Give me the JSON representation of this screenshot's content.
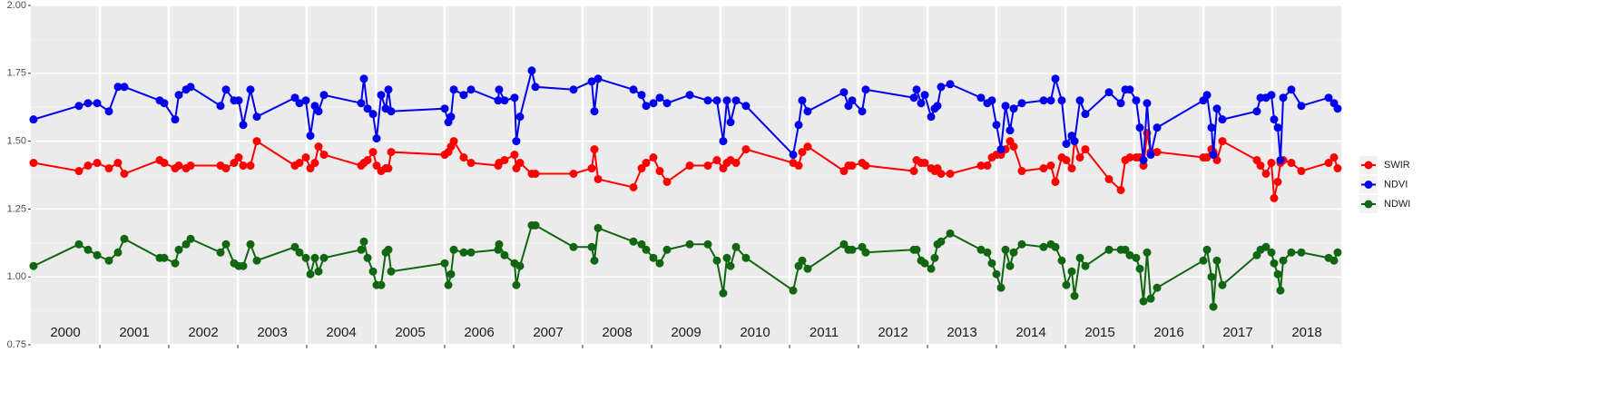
{
  "chart_data": {
    "type": "line",
    "x": [
      2000.039,
      2000.697,
      2000.829,
      2000.961,
      2001.132,
      2001.263,
      2001.355,
      2001.868,
      2001.934,
      2002.092,
      2002.145,
      2002.25,
      2002.316,
      2002.75,
      2002.829,
      2002.947,
      2003.013,
      2003.079,
      2003.184,
      2003.276,
      2003.829,
      2003.895,
      2003.987,
      2004.053,
      2004.118,
      2004.171,
      2004.25,
      2004.789,
      2004.829,
      2004.882,
      2004.961,
      2005.013,
      2005.079,
      2005.145,
      2005.184,
      2005.224,
      2006.0,
      2006.053,
      2006.092,
      2006.132,
      2006.276,
      2006.382,
      2006.776,
      2006.789,
      2006.868,
      2007.013,
      2007.039,
      2007.092,
      2007.263,
      2007.316,
      2007.868,
      2008.132,
      2008.171,
      2008.224,
      2008.737,
      2008.855,
      2008.921,
      2009.026,
      2009.118,
      2009.224,
      2009.553,
      2009.816,
      2009.947,
      2010.039,
      2010.092,
      2010.145,
      2010.224,
      2010.368,
      2011.053,
      2011.132,
      2011.184,
      2011.263,
      2011.789,
      2011.855,
      2011.908,
      2012.053,
      2012.105,
      2012.803,
      2012.842,
      2012.908,
      2012.961,
      2013.053,
      2013.105,
      2013.145,
      2013.197,
      2013.329,
      2013.776,
      2013.868,
      2013.934,
      2014.0,
      2014.066,
      2014.132,
      2014.197,
      2014.25,
      2014.368,
      2014.684,
      2014.789,
      2014.855,
      2014.947,
      2015.013,
      2015.092,
      2015.132,
      2015.211,
      2015.289,
      2015.632,
      2015.803,
      2015.868,
      2015.934,
      2016.026,
      2016.079,
      2016.132,
      2016.184,
      2016.237,
      2016.329,
      2017.0,
      2017.053,
      2017.118,
      2017.145,
      2017.197,
      2017.276,
      2017.776,
      2017.829,
      2017.908,
      2017.987,
      2018.026,
      2018.079,
      2018.118,
      2018.158,
      2018.276,
      2018.421,
      2018.816,
      2018.895,
      2018.947
    ],
    "series": [
      {
        "name": "SWIR",
        "color": "#ff0000",
        "values": [
          1.42,
          1.39,
          1.41,
          1.42,
          1.4,
          1.42,
          1.38,
          1.43,
          1.42,
          1.4,
          1.41,
          1.4,
          1.41,
          1.41,
          1.4,
          1.42,
          1.44,
          1.41,
          1.41,
          1.5,
          1.41,
          1.42,
          1.44,
          1.4,
          1.42,
          1.48,
          1.45,
          1.41,
          1.42,
          1.43,
          1.46,
          1.41,
          1.39,
          1.4,
          1.4,
          1.46,
          1.45,
          1.46,
          1.48,
          1.5,
          1.44,
          1.42,
          1.41,
          1.42,
          1.43,
          1.45,
          1.4,
          1.42,
          1.38,
          1.38,
          1.38,
          1.4,
          1.47,
          1.36,
          1.33,
          1.4,
          1.42,
          1.44,
          1.39,
          1.35,
          1.41,
          1.41,
          1.43,
          1.4,
          1.42,
          1.43,
          1.42,
          1.47,
          1.42,
          1.41,
          1.46,
          1.48,
          1.39,
          1.41,
          1.41,
          1.42,
          1.41,
          1.39,
          1.43,
          1.42,
          1.42,
          1.4,
          1.39,
          1.4,
          1.38,
          1.38,
          1.41,
          1.41,
          1.44,
          1.45,
          1.45,
          1.47,
          1.5,
          1.48,
          1.39,
          1.4,
          1.41,
          1.35,
          1.44,
          1.43,
          1.4,
          1.5,
          1.44,
          1.47,
          1.36,
          1.32,
          1.43,
          1.44,
          1.44,
          1.44,
          1.41,
          1.53,
          1.46,
          1.46,
          1.44,
          1.44,
          1.47,
          1.46,
          1.43,
          1.5,
          1.43,
          1.41,
          1.38,
          1.42,
          1.29,
          1.35,
          1.42,
          1.43,
          1.42,
          1.39,
          1.42,
          1.44,
          1.4
        ]
      },
      {
        "name": "NDVI",
        "color": "#0000ee",
        "values": [
          1.58,
          1.63,
          1.64,
          1.64,
          1.61,
          1.7,
          1.7,
          1.65,
          1.64,
          1.58,
          1.67,
          1.69,
          1.7,
          1.63,
          1.69,
          1.65,
          1.65,
          1.56,
          1.69,
          1.59,
          1.66,
          1.64,
          1.65,
          1.52,
          1.63,
          1.61,
          1.67,
          1.64,
          1.73,
          1.62,
          1.6,
          1.51,
          1.67,
          1.62,
          1.69,
          1.61,
          1.62,
          1.57,
          1.59,
          1.69,
          1.67,
          1.69,
          1.65,
          1.69,
          1.65,
          1.66,
          1.5,
          1.59,
          1.76,
          1.7,
          1.69,
          1.72,
          1.61,
          1.73,
          1.69,
          1.67,
          1.63,
          1.64,
          1.66,
          1.64,
          1.67,
          1.65,
          1.65,
          1.5,
          1.65,
          1.57,
          1.65,
          1.63,
          1.45,
          1.56,
          1.65,
          1.61,
          1.68,
          1.63,
          1.65,
          1.61,
          1.69,
          1.66,
          1.69,
          1.64,
          1.67,
          1.59,
          1.62,
          1.63,
          1.7,
          1.71,
          1.66,
          1.64,
          1.65,
          1.56,
          1.47,
          1.63,
          1.54,
          1.62,
          1.64,
          1.65,
          1.65,
          1.73,
          1.65,
          1.49,
          1.52,
          1.5,
          1.65,
          1.6,
          1.68,
          1.64,
          1.69,
          1.69,
          1.65,
          1.55,
          1.43,
          1.64,
          1.45,
          1.55,
          1.65,
          1.67,
          1.55,
          1.45,
          1.62,
          1.58,
          1.61,
          1.66,
          1.66,
          1.67,
          1.58,
          1.55,
          1.43,
          1.66,
          1.69,
          1.63,
          1.66,
          1.64,
          1.62
        ]
      },
      {
        "name": "NDWI",
        "color": "#116611",
        "values": [
          1.04,
          1.12,
          1.1,
          1.08,
          1.06,
          1.09,
          1.14,
          1.07,
          1.07,
          1.05,
          1.1,
          1.12,
          1.14,
          1.09,
          1.12,
          1.05,
          1.04,
          1.04,
          1.12,
          1.06,
          1.11,
          1.09,
          1.07,
          1.01,
          1.07,
          1.02,
          1.07,
          1.1,
          1.13,
          1.07,
          1.02,
          0.97,
          0.97,
          1.09,
          1.1,
          1.02,
          1.05,
          0.97,
          1.01,
          1.1,
          1.09,
          1.09,
          1.1,
          1.12,
          1.08,
          1.05,
          0.97,
          1.04,
          1.19,
          1.19,
          1.11,
          1.11,
          1.06,
          1.18,
          1.13,
          1.12,
          1.1,
          1.07,
          1.05,
          1.1,
          1.12,
          1.12,
          1.06,
          0.94,
          1.07,
          1.04,
          1.11,
          1.07,
          0.95,
          1.04,
          1.06,
          1.03,
          1.12,
          1.1,
          1.1,
          1.11,
          1.09,
          1.1,
          1.1,
          1.06,
          1.05,
          1.03,
          1.07,
          1.12,
          1.13,
          1.16,
          1.1,
          1.09,
          1.05,
          1.01,
          0.96,
          1.1,
          1.04,
          1.09,
          1.12,
          1.11,
          1.12,
          1.11,
          1.06,
          0.97,
          1.02,
          0.93,
          1.07,
          1.04,
          1.1,
          1.1,
          1.1,
          1.08,
          1.07,
          1.03,
          0.91,
          1.09,
          0.92,
          0.96,
          1.06,
          1.1,
          1.0,
          0.89,
          1.06,
          0.97,
          1.08,
          1.1,
          1.11,
          1.09,
          1.05,
          1.01,
          0.95,
          1.06,
          1.09,
          1.09,
          1.07,
          1.06,
          1.09
        ]
      }
    ],
    "xlim": [
      2000,
      2019
    ],
    "xticks": [
      {
        "value": 2000.5,
        "label": "2000"
      },
      {
        "value": 2001.5,
        "label": "2001"
      },
      {
        "value": 2002.5,
        "label": "2002"
      },
      {
        "value": 2003.5,
        "label": "2003"
      },
      {
        "value": 2004.5,
        "label": "2004"
      },
      {
        "value": 2005.5,
        "label": "2005"
      },
      {
        "value": 2006.5,
        "label": "2006"
      },
      {
        "value": 2007.5,
        "label": "2007"
      },
      {
        "value": 2008.5,
        "label": "2008"
      },
      {
        "value": 2009.5,
        "label": "2009"
      },
      {
        "value": 2010.5,
        "label": "2010"
      },
      {
        "value": 2011.5,
        "label": "2011"
      },
      {
        "value": 2012.5,
        "label": "2012"
      },
      {
        "value": 2013.5,
        "label": "2013"
      },
      {
        "value": 2014.5,
        "label": "2014"
      },
      {
        "value": 2015.5,
        "label": "2015"
      },
      {
        "value": 2016.5,
        "label": "2016"
      },
      {
        "value": 2017.5,
        "label": "2017"
      },
      {
        "value": 2018.5,
        "label": "2018"
      }
    ],
    "xgrid": [
      2001,
      2002,
      2003,
      2004,
      2005,
      2006,
      2007,
      2008,
      2009,
      2010,
      2011,
      2012,
      2013,
      2014,
      2015,
      2016,
      2017,
      2018
    ],
    "ylim": [
      0.75,
      2.0
    ],
    "yticks": [
      0.75,
      {
        "value": 1.0,
        "label": "1.00"
      },
      1.25,
      {
        "value": 1.5,
        "label": "1.50"
      },
      1.75,
      {
        "value": 2.0,
        "label": "2.00"
      }
    ],
    "yminor": [
      0.875,
      1.125,
      1.375,
      1.625,
      1.875
    ],
    "grid": true,
    "legend": "right"
  }
}
